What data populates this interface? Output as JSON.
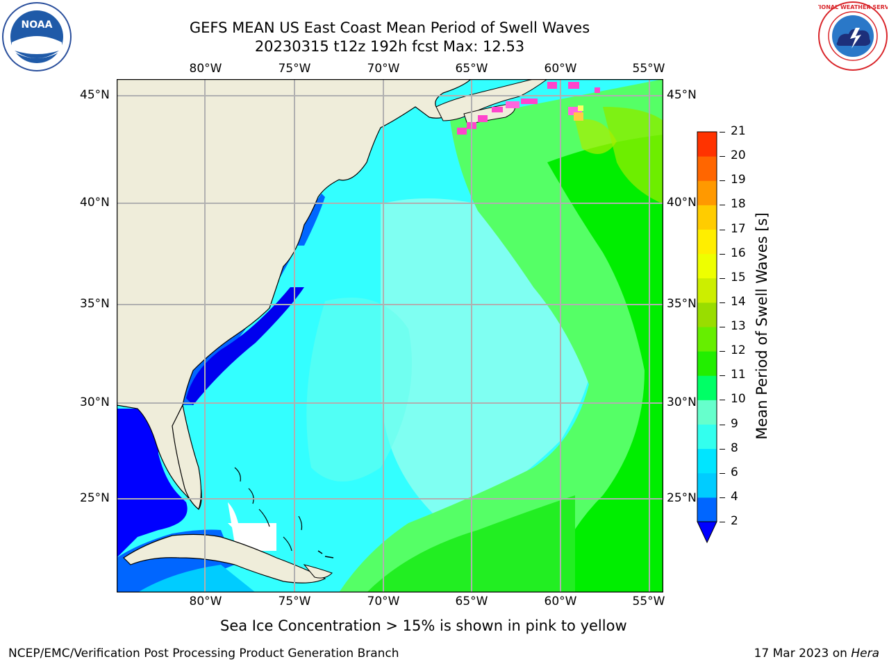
{
  "header": {
    "title_line1": "GEFS MEAN US East Coast Mean Period of Swell Waves",
    "title_line2": "20230315 t12z 192h fcst   Max: 12.53"
  },
  "logos": {
    "noara_text": "NOAA",
    "nws_text": "NATIONAL WEATHER SERVICE"
  },
  "map": {
    "lon_labels": [
      "80°W",
      "75°W",
      "70°W",
      "65°W",
      "60°W",
      "55°W"
    ],
    "lat_labels": [
      "45°N",
      "40°N",
      "35°N",
      "30°N",
      "25°N"
    ],
    "land_color": "#efedda",
    "grid_color": "#b0b0b0"
  },
  "colorbar": {
    "label": "Mean Period of Swell Waves [s]",
    "ticks": [
      "2",
      "4",
      "6",
      "8",
      "9",
      "10",
      "11",
      "12",
      "13",
      "14",
      "15",
      "16",
      "17",
      "18",
      "19",
      "20",
      "21"
    ],
    "colors": [
      "#0000ff",
      "#0066ff",
      "#00ccff",
      "#00e5ff",
      "#33ffee",
      "#66ffcc",
      "#00ff66",
      "#22ee00",
      "#66ee00",
      "#99dd00",
      "#ccee00",
      "#eeff00",
      "#ffee00",
      "#ffcc00",
      "#ff9900",
      "#ff6600",
      "#ff3300",
      "#ff0000"
    ]
  },
  "notes": {
    "sea_ice": "Sea Ice Concentration > 15% is shown in pink to yellow"
  },
  "footer": {
    "left": "NCEP/EMC/Verification Post Processing Product Generation Branch",
    "right_prefix": "17 Mar 2023 on ",
    "right_host": "Hera"
  }
}
